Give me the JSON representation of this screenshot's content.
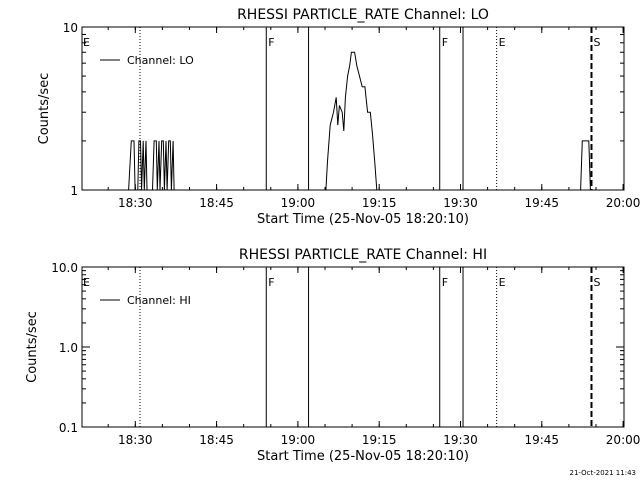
{
  "footer": {
    "timestamp": "21-Oct-2021 11:43"
  },
  "chart_data": [
    {
      "type": "line",
      "title": "RHESSI PARTICLE_RATE Channel: LO",
      "xlabel": "Start Time (25-Nov-05 18:20:10)",
      "ylabel": "Counts/sec",
      "x_unit": "minutes since 18:20:10",
      "xlim": [
        0,
        100
      ],
      "ylim": [
        1,
        10
      ],
      "yscale": "log",
      "x_ticks": [
        "18:30",
        "18:45",
        "19:00",
        "19:15",
        "19:30",
        "19:45",
        "20:00"
      ],
      "y_ticks": [
        "1",
        "10"
      ],
      "legend": {
        "position": "top-left",
        "entries": [
          "Channel: LO"
        ]
      },
      "markers": [
        {
          "label": "E",
          "x": 0,
          "style": "none"
        },
        {
          "label": "",
          "x": 10.7,
          "style": "dotted"
        },
        {
          "label": "F",
          "x": 34.0,
          "style": "solid"
        },
        {
          "label": "",
          "x": 41.8,
          "style": "solid"
        },
        {
          "label": "F",
          "x": 66.0,
          "style": "solid"
        },
        {
          "label": "",
          "x": 70.3,
          "style": "solid"
        },
        {
          "label": "E",
          "x": 76.5,
          "style": "dotted"
        },
        {
          "label": "S",
          "x": 94.0,
          "style": "dashed"
        }
      ],
      "series": [
        {
          "name": "Channel: LO",
          "segments": [
            [
              [
                8.6,
                1
              ],
              [
                9.1,
                2
              ],
              [
                9.6,
                2
              ],
              [
                9.8,
                1
              ],
              [
                10.3,
                1
              ],
              [
                10.5,
                2
              ],
              [
                10.8,
                2
              ],
              [
                11.0,
                1
              ],
              [
                11.3,
                2
              ],
              [
                11.5,
                1
              ],
              [
                11.8,
                2
              ],
              [
                12.0,
                1
              ]
            ],
            [
              [
                13.0,
                1
              ],
              [
                13.3,
                2
              ],
              [
                13.7,
                2
              ],
              [
                13.9,
                1
              ],
              [
                14.2,
                2
              ],
              [
                14.4,
                1
              ],
              [
                14.7,
                2
              ],
              [
                15.0,
                2
              ],
              [
                15.2,
                1
              ],
              [
                15.5,
                2
              ],
              [
                15.7,
                1
              ],
              [
                16.0,
                2
              ],
              [
                16.3,
                2
              ],
              [
                16.5,
                1
              ],
              [
                16.8,
                2
              ],
              [
                17.0,
                1
              ]
            ],
            [
              [
                45.0,
                1
              ],
              [
                45.3,
                1.5
              ],
              [
                45.8,
                2.5
              ],
              [
                46.4,
                3.0
              ],
              [
                46.9,
                3.7
              ],
              [
                47.2,
                2.5
              ],
              [
                47.5,
                3.3
              ],
              [
                48.0,
                3.0
              ],
              [
                48.3,
                2.3
              ],
              [
                48.6,
                3.7
              ],
              [
                49.0,
                5.0
              ],
              [
                49.4,
                5.8
              ],
              [
                49.7,
                7.0
              ],
              [
                50.3,
                7.0
              ],
              [
                50.7,
                5.8
              ],
              [
                51.2,
                5.0
              ],
              [
                51.7,
                4.3
              ],
              [
                52.2,
                4.3
              ],
              [
                52.7,
                3.0
              ],
              [
                53.2,
                3.0
              ],
              [
                53.6,
                2.2
              ],
              [
                54.0,
                1.5
              ],
              [
                54.4,
                1
              ]
            ],
            [
              [
                92.0,
                1
              ],
              [
                92.3,
                2
              ],
              [
                93.5,
                2
              ],
              [
                93.8,
                1
              ]
            ]
          ]
        }
      ]
    },
    {
      "type": "line",
      "title": "RHESSI PARTICLE_RATE Channel: HI",
      "xlabel": "Start Time (25-Nov-05 18:20:10)",
      "ylabel": "Counts/sec",
      "x_unit": "minutes since 18:20:10",
      "xlim": [
        0,
        100
      ],
      "ylim": [
        0.1,
        10
      ],
      "yscale": "log",
      "x_ticks": [
        "18:30",
        "18:45",
        "19:00",
        "19:15",
        "19:30",
        "19:45",
        "20:00"
      ],
      "y_ticks": [
        "0.1",
        "1.0",
        "10.0"
      ],
      "legend": {
        "position": "top-left",
        "entries": [
          "Channel: HI"
        ]
      },
      "markers": [
        {
          "label": "E",
          "x": 0,
          "style": "none"
        },
        {
          "label": "",
          "x": 10.7,
          "style": "dotted"
        },
        {
          "label": "F",
          "x": 34.0,
          "style": "solid"
        },
        {
          "label": "",
          "x": 41.8,
          "style": "solid"
        },
        {
          "label": "F",
          "x": 66.0,
          "style": "solid"
        },
        {
          "label": "",
          "x": 70.3,
          "style": "solid"
        },
        {
          "label": "E",
          "x": 76.5,
          "style": "dotted"
        },
        {
          "label": "S",
          "x": 94.0,
          "style": "dashed"
        }
      ],
      "series": [
        {
          "name": "Channel: HI",
          "segments": []
        }
      ]
    }
  ]
}
